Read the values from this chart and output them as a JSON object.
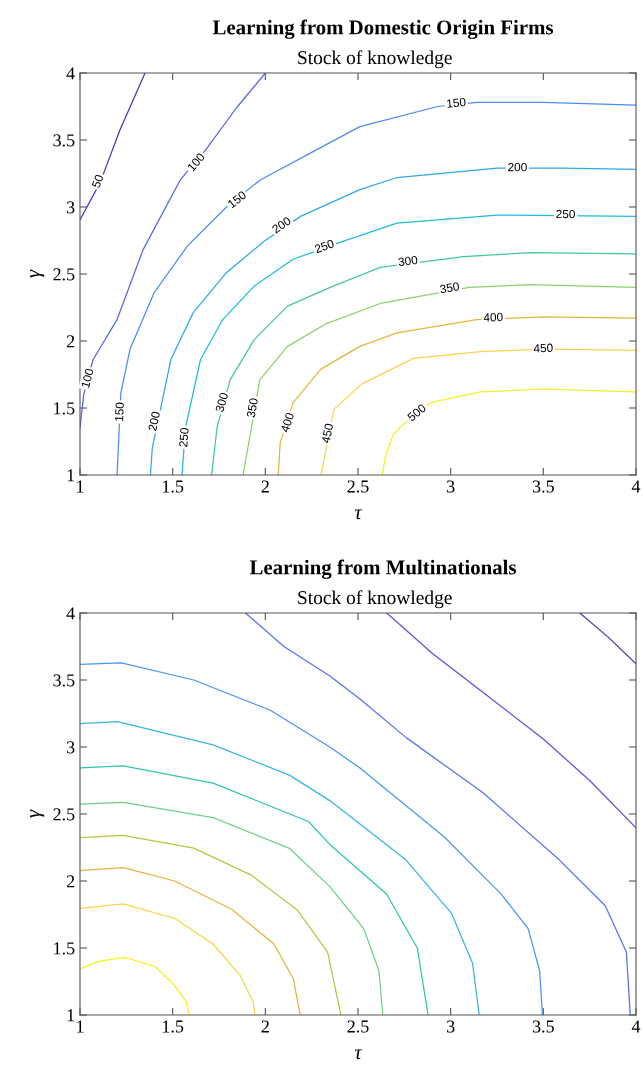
{
  "chart_data": [
    {
      "type": "line",
      "title": "Learning from Domestic Origin Firms",
      "subtitle": "Stock of knowledge",
      "xlabel": "τ",
      "ylabel": "γ",
      "xlim": [
        1,
        4
      ],
      "ylim": [
        1,
        4
      ],
      "xticks": [
        1,
        1.5,
        2,
        2.5,
        3,
        3.5,
        4
      ],
      "yticks": [
        1,
        1.5,
        2,
        2.5,
        3,
        3.5,
        4
      ],
      "series": [
        {
          "color": "#4536b8",
          "x": [
            1.0,
            1.108,
            1.216,
            1.351
          ],
          "values": [
            2.905,
            3.18,
            3.577,
            4.0
          ]
        },
        {
          "color": "#5b62e8",
          "x": [
            1.0,
            1.02,
            1.07,
            1.2,
            1.34,
            1.54,
            1.68,
            1.85,
            2.0
          ],
          "values": [
            1.35,
            1.6,
            1.86,
            2.16,
            2.68,
            3.2,
            3.43,
            3.75,
            4.0
          ]
        },
        {
          "color": "#4a8bf5",
          "x": [
            1.2,
            1.21,
            1.22,
            1.27,
            1.4,
            1.58,
            1.79,
            1.97,
            2.24,
            2.51,
            2.93,
            3.14,
            3.5,
            4.0
          ],
          "values": [
            1.0,
            1.3,
            1.61,
            1.94,
            2.36,
            2.71,
            3.0,
            3.2,
            3.4,
            3.6,
            3.75,
            3.78,
            3.78,
            3.76
          ]
        },
        {
          "color": "#2ea8ec",
          "x": [
            1.38,
            1.39,
            1.49,
            1.61,
            1.79,
            1.99,
            2.19,
            2.51,
            2.71,
            3.25,
            3.6,
            4.0
          ],
          "values": [
            1.0,
            1.2,
            1.86,
            2.21,
            2.51,
            2.74,
            2.93,
            3.13,
            3.22,
            3.29,
            3.29,
            3.28
          ]
        },
        {
          "color": "#1ebcd9",
          "x": [
            1.55,
            1.57,
            1.65,
            1.77,
            1.94,
            2.15,
            2.41,
            2.71,
            3.25,
            4.0
          ],
          "values": [
            1.0,
            1.36,
            1.86,
            2.16,
            2.41,
            2.61,
            2.74,
            2.88,
            2.94,
            2.93
          ]
        },
        {
          "color": "#42c8a0",
          "x": [
            1.71,
            1.74,
            1.81,
            1.94,
            2.12,
            2.35,
            2.62,
            3.07,
            3.43,
            4.0
          ],
          "values": [
            1.0,
            1.36,
            1.71,
            2.01,
            2.26,
            2.4,
            2.55,
            2.63,
            2.66,
            2.65
          ]
        },
        {
          "color": "#8fcf6a",
          "x": [
            1.88,
            1.97,
            2.12,
            2.33,
            2.62,
            3.1,
            3.43,
            4.0
          ],
          "values": [
            1.0,
            1.71,
            1.96,
            2.13,
            2.28,
            2.4,
            2.42,
            2.4
          ]
        },
        {
          "color": "#e0b83c",
          "x": [
            2.07,
            2.08,
            2.15,
            2.3,
            2.51,
            2.71,
            3.14,
            3.5,
            4.0
          ],
          "values": [
            1.0,
            1.24,
            1.54,
            1.79,
            1.96,
            2.06,
            2.16,
            2.18,
            2.17
          ]
        },
        {
          "color": "#fbd24a",
          "x": [
            2.3,
            2.37,
            2.52,
            2.8,
            3.16,
            3.5,
            4.0
          ],
          "values": [
            1.0,
            1.49,
            1.68,
            1.87,
            1.92,
            1.94,
            1.93
          ]
        },
        {
          "color": "#f5f023",
          "x": [
            2.63,
            2.65,
            2.69,
            2.73,
            2.89,
            3.16,
            3.5,
            4.0
          ],
          "values": [
            1.0,
            1.15,
            1.3,
            1.36,
            1.54,
            1.62,
            1.64,
            1.62
          ]
        }
      ],
      "annotations": [
        {
          "text": "50",
          "x": 1.1,
          "y": 3.19
        },
        {
          "text": "100",
          "x": 1.63,
          "y": 3.33
        },
        {
          "text": "100",
          "x": 1.045,
          "y": 1.72
        },
        {
          "text": "150",
          "x": 1.85,
          "y": 3.05
        },
        {
          "text": "150",
          "x": 1.218,
          "y": 1.47
        },
        {
          "text": "150",
          "x": 3.03,
          "y": 3.77
        },
        {
          "text": "200",
          "x": 2.09,
          "y": 2.86
        },
        {
          "text": "200",
          "x": 1.405,
          "y": 1.4
        },
        {
          "text": "200",
          "x": 3.36,
          "y": 3.29
        },
        {
          "text": "250",
          "x": 2.32,
          "y": 2.7
        },
        {
          "text": "250",
          "x": 1.566,
          "y": 1.28
        },
        {
          "text": "250",
          "x": 3.62,
          "y": 2.94
        },
        {
          "text": "300",
          "x": 1.77,
          "y": 1.54
        },
        {
          "text": "300",
          "x": 2.77,
          "y": 2.59
        },
        {
          "text": "350",
          "x": 1.935,
          "y": 1.5
        },
        {
          "text": "350",
          "x": 2.995,
          "y": 2.39
        },
        {
          "text": "400",
          "x": 2.124,
          "y": 1.39
        },
        {
          "text": "400",
          "x": 3.23,
          "y": 2.17
        },
        {
          "text": "450",
          "x": 2.34,
          "y": 1.31
        },
        {
          "text": "450",
          "x": 3.5,
          "y": 1.94
        },
        {
          "text": "500",
          "x": 2.82,
          "y": 1.46
        }
      ]
    },
    {
      "type": "line",
      "title": "Learning from Multinationals",
      "subtitle": "Stock of knowledge",
      "xlabel": "τ",
      "ylabel": "γ",
      "xlim": [
        1,
        4
      ],
      "ylim": [
        1,
        4
      ],
      "xticks": [
        1,
        1.5,
        2,
        2.5,
        3,
        3.5,
        4
      ],
      "yticks": [
        1,
        1.5,
        2,
        2.5,
        3,
        3.5,
        4
      ],
      "series": [
        {
          "color": "#4836b0",
          "x": [
            3.697,
            3.85,
            4.0
          ],
          "values": [
            4.0,
            3.82,
            3.62
          ]
        },
        {
          "color": "#5a52d8",
          "x": [
            2.655,
            2.9,
            3.2,
            3.5,
            3.75,
            4.0
          ],
          "values": [
            4.0,
            3.7,
            3.38,
            3.06,
            2.75,
            2.396
          ]
        },
        {
          "color": "#5b6ff0",
          "x": [
            1.893,
            2.1,
            2.348,
            2.509,
            2.76,
            3.173,
            3.586,
            3.834,
            3.948,
            3.969
          ],
          "values": [
            4.0,
            3.75,
            3.53,
            3.36,
            3.07,
            2.66,
            2.158,
            1.815,
            1.47,
            1.0
          ]
        },
        {
          "color": "#4a94f2",
          "x": [
            1.0,
            1.223,
            1.614,
            2.027,
            2.348,
            2.509,
            2.964,
            3.274,
            3.418,
            3.48,
            3.495
          ],
          "values": [
            3.617,
            3.628,
            3.5,
            3.274,
            3.0,
            2.845,
            2.33,
            1.9,
            1.644,
            1.33,
            1.0
          ]
        },
        {
          "color": "#38b4e0",
          "x": [
            1.0,
            1.202,
            1.718,
            2.13,
            2.348,
            2.758,
            3.005,
            3.118,
            3.154
          ],
          "values": [
            3.174,
            3.19,
            3.016,
            2.79,
            2.6,
            2.158,
            1.758,
            1.386,
            1.0
          ]
        },
        {
          "color": "#2ec4b0",
          "x": [
            1.0,
            1.233,
            1.718,
            2.233,
            2.348,
            2.655,
            2.82,
            2.878
          ],
          "values": [
            2.845,
            2.859,
            2.73,
            2.444,
            2.273,
            1.901,
            1.5,
            1.0
          ]
        },
        {
          "color": "#6fcf8a",
          "x": [
            1.0,
            1.233,
            1.718,
            2.13,
            2.348,
            2.531,
            2.613,
            2.634
          ],
          "values": [
            2.573,
            2.587,
            2.473,
            2.244,
            1.958,
            1.644,
            1.33,
            1.0
          ]
        },
        {
          "color": "#b8c442",
          "x": [
            1.0,
            1.233,
            1.614,
            1.924,
            2.171,
            2.336,
            2.408
          ],
          "values": [
            2.324,
            2.34,
            2.245,
            2.044,
            1.786,
            1.47,
            1.0
          ]
        },
        {
          "color": "#e3b43c",
          "x": [
            1.0,
            1.233,
            1.511,
            1.82,
            2.047,
            2.151,
            2.188
          ],
          "values": [
            2.078,
            2.1,
            2.0,
            1.787,
            1.53,
            1.27,
            1.0
          ]
        },
        {
          "color": "#f8d545",
          "x": [
            1.0,
            1.233,
            1.511,
            1.718,
            1.862,
            1.934,
            1.944
          ],
          "values": [
            1.795,
            1.83,
            1.72,
            1.53,
            1.3,
            1.1,
            1.0
          ]
        },
        {
          "color": "#f5f023",
          "x": [
            1.0,
            1.1,
            1.243,
            1.408,
            1.511,
            1.573,
            1.588
          ],
          "values": [
            1.343,
            1.4,
            1.43,
            1.36,
            1.22,
            1.1,
            1.0
          ]
        }
      ]
    }
  ]
}
